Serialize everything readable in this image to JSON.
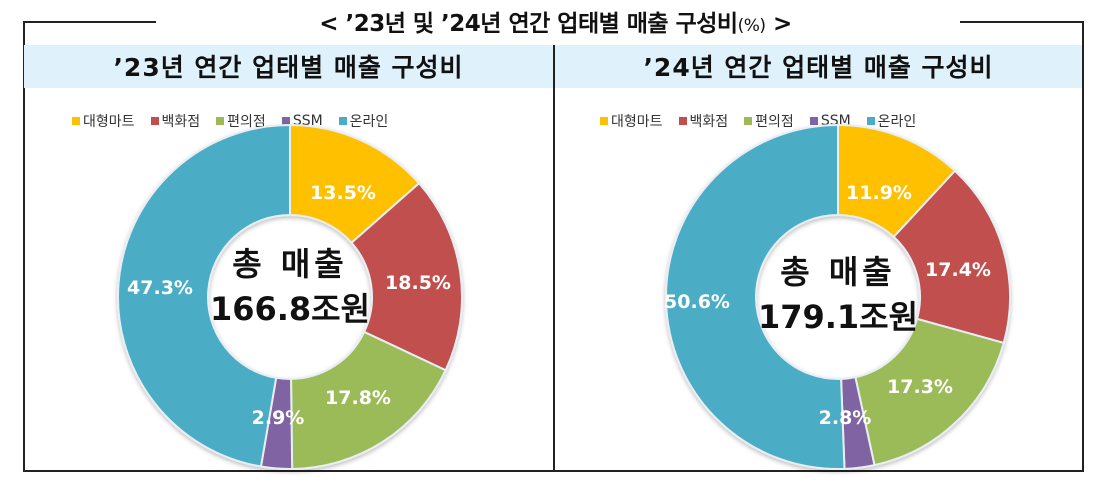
{
  "title": {
    "text": "< ’23년 및 ’24년 연간 업태별 매출 구성비",
    "unit": "(%)",
    "suffix": " >"
  },
  "legend": [
    {
      "label": "대형마트",
      "color": "#ffc000"
    },
    {
      "label": "백화점",
      "color": "#c0504d"
    },
    {
      "label": "편의점",
      "color": "#9bbb59"
    },
    {
      "label": "SSM",
      "color": "#8064a2"
    },
    {
      "label": "온라인",
      "color": "#4bacc6"
    }
  ],
  "panels": [
    {
      "title": "’23년 연간 업태별 매출 구성비",
      "center_line1": "총 매출",
      "center_line2": "166.8조원",
      "labels": [
        "13.5%",
        "18.5%",
        "17.8%",
        "2.9%",
        "47.3%"
      ]
    },
    {
      "title": "’24년 연간 업태별 매출 구성비",
      "center_line1": "총 매출",
      "center_line2": "179.1조원",
      "labels": [
        "11.9%",
        "17.4%",
        "17.3%",
        "2.8%",
        "50.6%"
      ]
    }
  ],
  "chart_data": [
    {
      "type": "pie",
      "variant": "donut",
      "title": "’23년 연간 업태별 매출 구성비",
      "categories": [
        "대형마트",
        "백화점",
        "편의점",
        "SSM",
        "온라인"
      ],
      "values": [
        13.5,
        18.5,
        17.8,
        2.9,
        47.3
      ],
      "unit": "%",
      "colors": [
        "#ffc000",
        "#c0504d",
        "#9bbb59",
        "#8064a2",
        "#4bacc6"
      ],
      "center_text": [
        "총 매출",
        "166.8조원"
      ],
      "legend_position": "top"
    },
    {
      "type": "pie",
      "variant": "donut",
      "title": "’24년 연간 업태별 매출 구성비",
      "categories": [
        "대형마트",
        "백화점",
        "편의점",
        "SSM",
        "온라인"
      ],
      "values": [
        11.9,
        17.4,
        17.3,
        2.8,
        50.6
      ],
      "unit": "%",
      "colors": [
        "#ffc000",
        "#c0504d",
        "#9bbb59",
        "#8064a2",
        "#4bacc6"
      ],
      "center_text": [
        "총 매출",
        "179.1조원"
      ],
      "legend_position": "top"
    }
  ]
}
